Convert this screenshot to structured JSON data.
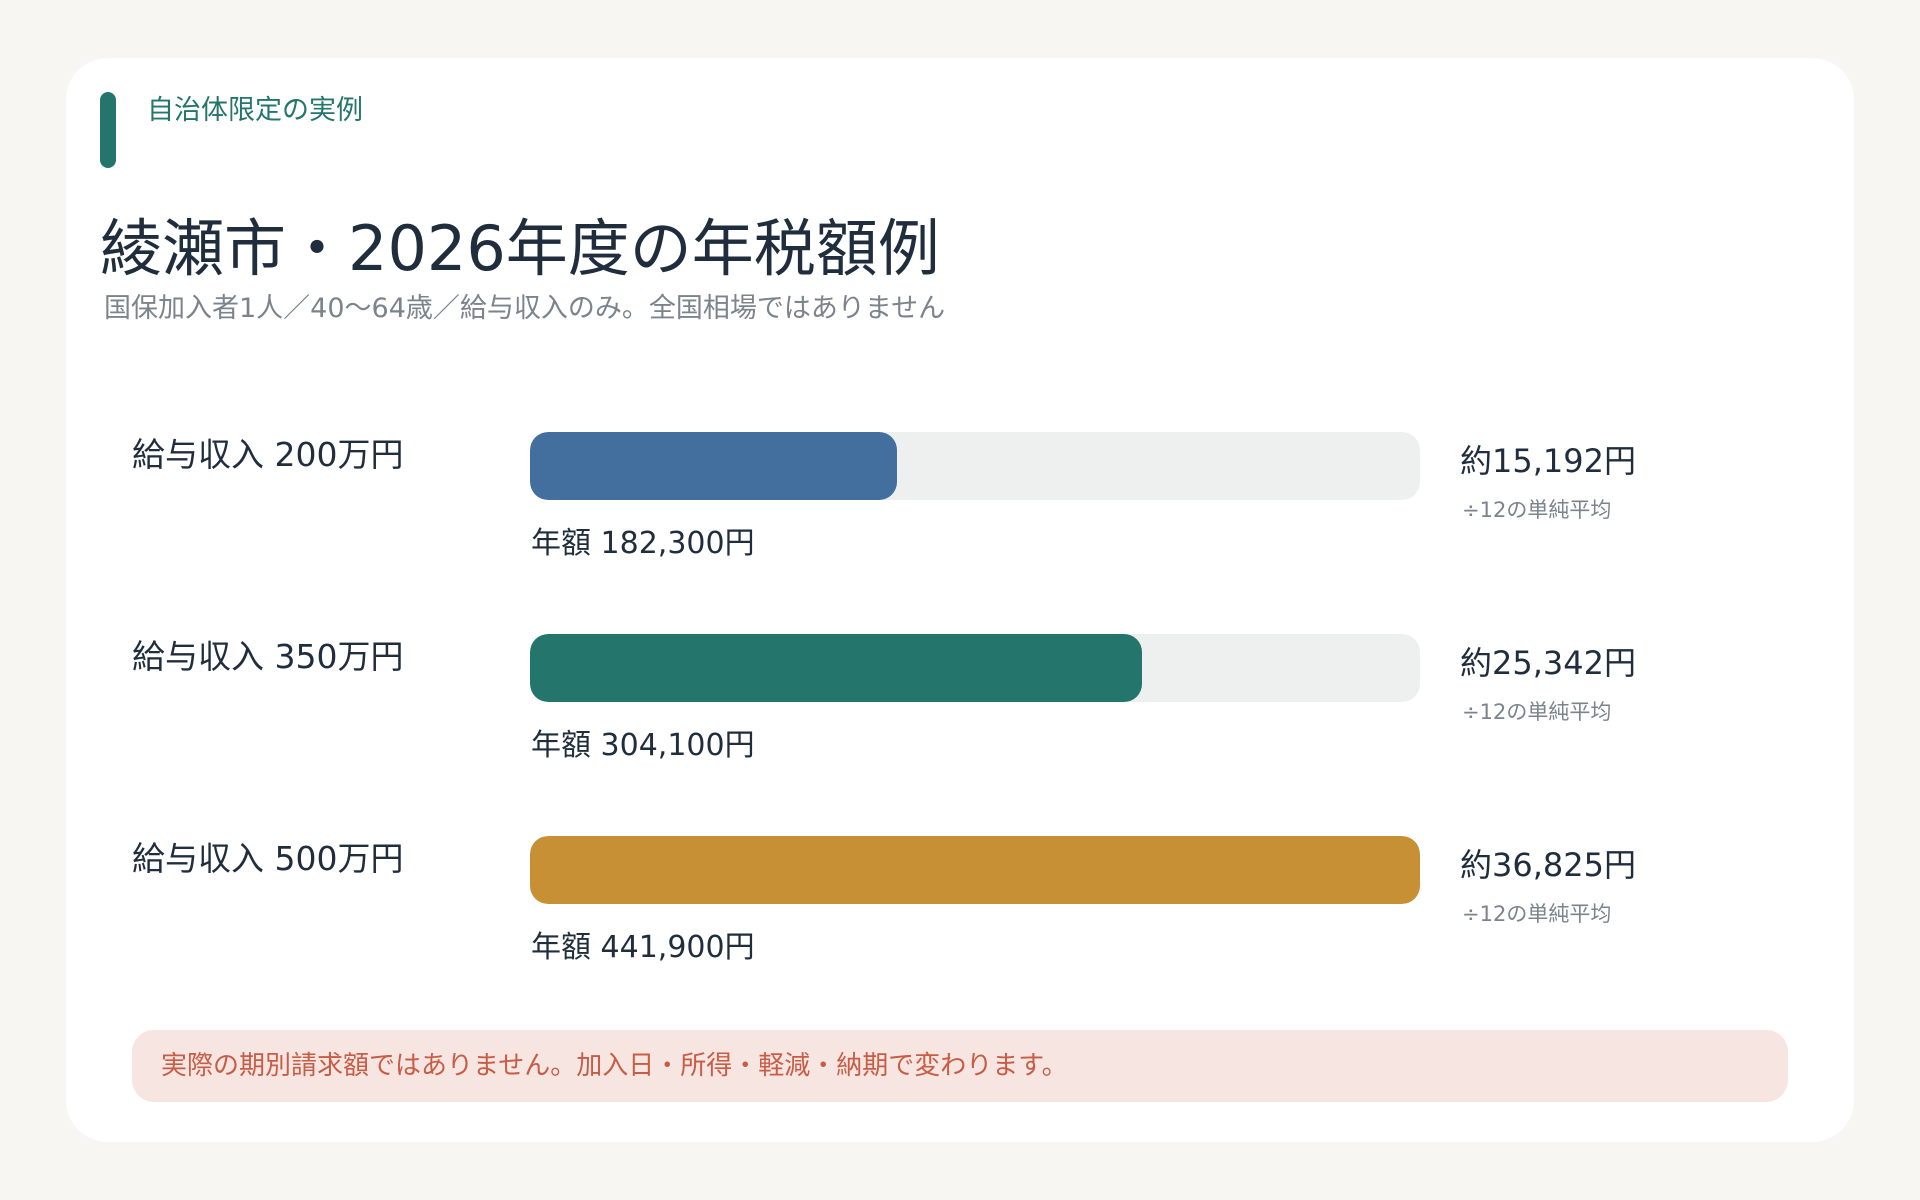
{
  "eyebrow": "自治体限定の実例",
  "title": "綾瀬市・2026年度の年税額例",
  "subtitle": "国保加入者1人／40〜64歳／給与収入のみ。全国相場ではありません",
  "disclaimer": "実際の期別請求額ではありません。加入日・所得・軽減・納期で変わります。",
  "colors": {
    "accent": "#24756c",
    "track": "#eef0ef",
    "warning_bg": "#f6e5e0",
    "warning_text": "#c75d47"
  },
  "chart_data": {
    "type": "bar",
    "orientation": "horizontal",
    "xlim": [
      0,
      441900
    ],
    "categories": [
      "給与収入 200万円",
      "給与収入 350万円",
      "給与収入 500万円"
    ],
    "values": [
      182300,
      304100,
      441900
    ],
    "bar_colors": [
      "#426f9e",
      "#24756c",
      "#c89034"
    ],
    "annual_labels": [
      "年額 182,300円",
      "年額 304,100円",
      "年額 441,900円"
    ],
    "monthly_labels": [
      "約15,192円",
      "約25,342円",
      "約36,825円"
    ],
    "monthly_note": "÷12の単純平均"
  }
}
